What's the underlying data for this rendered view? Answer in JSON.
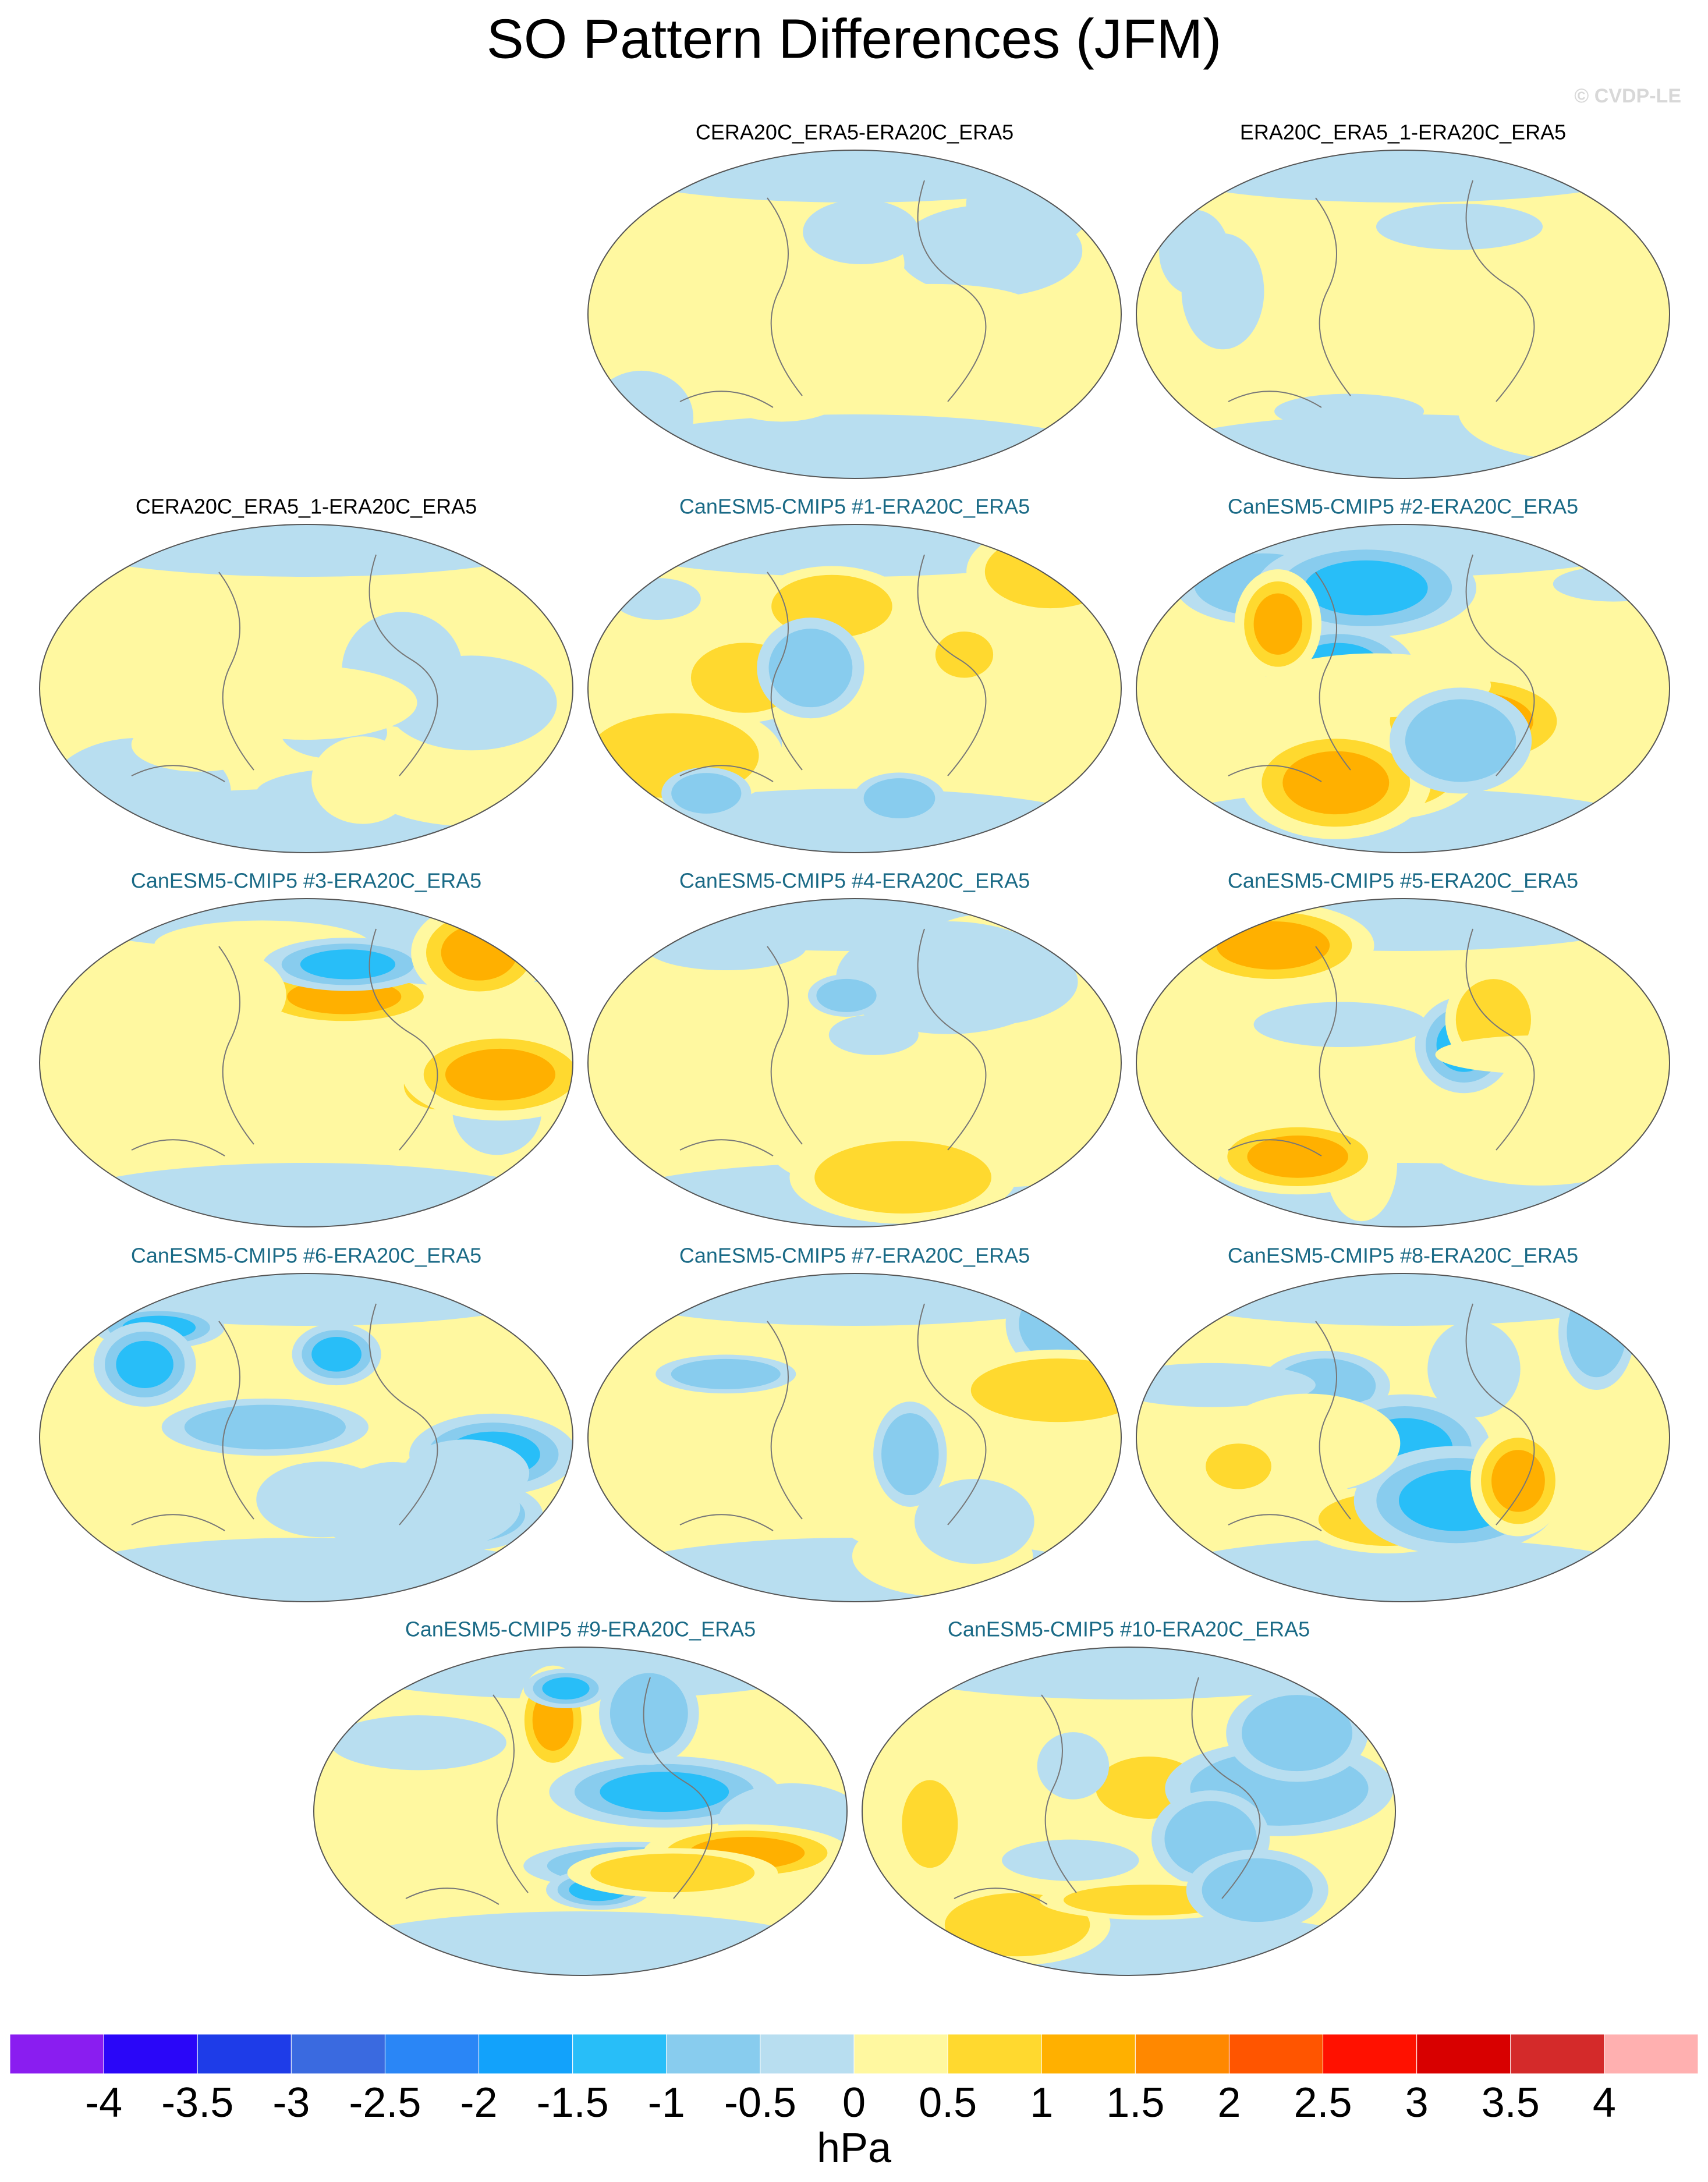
{
  "title": "SO Pattern Differences (JFM)",
  "watermark": "© CVDP-LE",
  "panels": [
    {
      "title": "CERA20C_ERA5-ERA20C_ERA5",
      "color": "#000000"
    },
    {
      "title": "ERA20C_ERA5_1-ERA20C_ERA5",
      "color": "#000000"
    },
    {
      "title": "CERA20C_ERA5_1-ERA20C_ERA5",
      "color": "#000000"
    },
    {
      "title": "CanESM5-CMIP5 #1-ERA20C_ERA5",
      "color": "#1a6a86"
    },
    {
      "title": "CanESM5-CMIP5 #2-ERA20C_ERA5",
      "color": "#1a6a86"
    },
    {
      "title": "CanESM5-CMIP5 #3-ERA20C_ERA5",
      "color": "#1a6a86"
    },
    {
      "title": "CanESM5-CMIP5 #4-ERA20C_ERA5",
      "color": "#1a6a86"
    },
    {
      "title": "CanESM5-CMIP5 #5-ERA20C_ERA5",
      "color": "#1a6a86"
    },
    {
      "title": "CanESM5-CMIP5 #6-ERA20C_ERA5",
      "color": "#1a6a86"
    },
    {
      "title": "CanESM5-CMIP5 #7-ERA20C_ERA5",
      "color": "#1a6a86"
    },
    {
      "title": "CanESM5-CMIP5 #8-ERA20C_ERA5",
      "color": "#1a6a86"
    },
    {
      "title": "CanESM5-CMIP5 #9-ERA20C_ERA5",
      "color": "#1a6a86"
    },
    {
      "title": "CanESM5-CMIP5 #10-ERA20C_ERA5",
      "color": "#1a6a86"
    }
  ],
  "colorbar": {
    "label": "hPa",
    "colors": [
      "#8a1df0",
      "#2a06f8",
      "#1e3ce8",
      "#3a6ae0",
      "#2a86f6",
      "#12a2fb",
      "#28bef8",
      "#88ccee",
      "#b8def0",
      "#fff8a0",
      "#ffd92f",
      "#ffb000",
      "#ff8800",
      "#ff5500",
      "#ff1100",
      "#d80000",
      "#d42a2a",
      "#ffb0b0"
    ],
    "ticks": [
      -4,
      -3.5,
      -3,
      -2.5,
      -2,
      -1.5,
      -1,
      -0.5,
      0,
      0.5,
      1,
      1.5,
      2,
      2.5,
      3,
      3.5,
      4
    ]
  }
}
